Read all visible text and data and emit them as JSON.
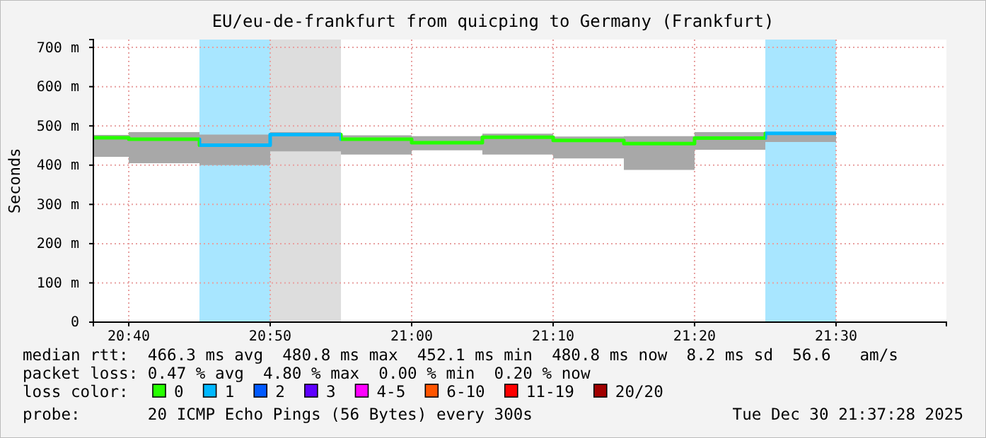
{
  "chart_data": {
    "type": "step",
    "title": "EU/eu-de-frankfurt from quicping to Germany (Frankfurt)",
    "ylabel": "Seconds",
    "x": [
      20.625,
      20.6667,
      20.75,
      20.8333,
      20.9167,
      21,
      21.0833,
      21.1667,
      21.25,
      21.3333,
      21.4167,
      21.5
    ],
    "xlim": [
      20.625,
      21.63
    ],
    "xticks": [
      {
        "value": 20.6667,
        "label": "20:40"
      },
      {
        "value": 20.8333,
        "label": "20:50"
      },
      {
        "value": 21,
        "label": "21:00"
      },
      {
        "value": 21.1667,
        "label": "21:10"
      },
      {
        "value": 21.3333,
        "label": "21:20"
      },
      {
        "value": 21.5,
        "label": "21:30"
      }
    ],
    "ylim": [
      0,
      720
    ],
    "yticks": [
      0,
      {
        "value": 100,
        "label": "100 m"
      },
      {
        "value": 200,
        "label": "200 m"
      },
      {
        "value": 300,
        "label": "300 m"
      },
      {
        "value": 400,
        "label": "400 m"
      },
      {
        "value": 500,
        "label": "500 m"
      },
      {
        "value": 600,
        "label": "600 m"
      },
      {
        "value": 700,
        "label": "700 m"
      }
    ],
    "grid": true,
    "legend": "bottom",
    "legend_title": "loss color:",
    "series": [
      {
        "color": "#26ff00",
        "values": [
          470,
          466,
          451,
          478,
          466,
          457,
          471,
          463,
          455,
          469,
          481,
          481
        ],
        "lower": [
          421,
          405,
          400,
          435,
          427,
          438,
          427,
          417,
          388,
          439,
          459,
          459
        ],
        "upper": [
          477,
          484,
          478,
          484,
          476,
          474,
          480,
          473,
          474,
          484,
          484,
          484
        ],
        "colors": [
          "#26ff00",
          "#26ff00",
          "#00b8ff",
          "#00b8ff",
          "#26ff00",
          "#26ff00",
          "#26ff00",
          "#26ff00",
          "#26ff00",
          "#26ff00",
          "#00b8ff",
          "#00b8ff"
        ]
      },
      {
        "name": "0",
        "color": "#26ff00",
        "values": [
          null,
          null,
          null,
          null,
          null,
          null,
          null,
          null,
          null,
          null,
          null,
          null
        ]
      },
      {
        "name": "1",
        "color": "#00b8ff",
        "values": [
          null,
          null,
          null,
          null,
          null,
          null,
          null,
          null,
          null,
          null,
          null,
          null
        ]
      },
      {
        "name": "2",
        "color": "#0059ff",
        "values": [
          null,
          null,
          null,
          null,
          null,
          null,
          null,
          null,
          null,
          null,
          null,
          null
        ]
      },
      {
        "name": "3",
        "color": "#5e00ff",
        "values": [
          null,
          null,
          null,
          null,
          null,
          null,
          null,
          null,
          null,
          null,
          null,
          null
        ]
      },
      {
        "name": "4-5",
        "color": "#ff00ff",
        "values": [
          null,
          null,
          null,
          null,
          null,
          null,
          null,
          null,
          null,
          null,
          null,
          null
        ]
      },
      {
        "name": "6-10",
        "color": "#ff5500",
        "values": [
          null,
          null,
          null,
          null,
          null,
          null,
          null,
          null,
          null,
          null,
          null,
          null
        ]
      },
      {
        "name": "11-19",
        "color": "#ff0000",
        "values": [
          null,
          null,
          null,
          null,
          null,
          null,
          null,
          null,
          null,
          null,
          null,
          null
        ]
      },
      {
        "name": "20/20",
        "color": "#a10000",
        "values": [
          null,
          null,
          null,
          null,
          null,
          null,
          null,
          null,
          null,
          null,
          null,
          null
        ]
      }
    ],
    "bands": [
      {
        "axis": "x",
        "from": 20.75,
        "to": 20.8333,
        "color": "#a8e6ff"
      },
      {
        "axis": "x",
        "from": 20.8333,
        "to": 20.9167,
        "color": "#dddddd"
      },
      {
        "axis": "x",
        "from": 21.4167,
        "to": 21.5,
        "color": "#a8e6ff"
      }
    ],
    "annotations": [
      "median rtt:  466.3 ms avg  480.8 ms max  452.1 ms min  480.8 ms now  8.2 ms sd  56.6   am/s",
      "packet loss: 0.47 % avg  4.80 % max  0.00 % min  0.20 % now",
      "probe:       20 ICMP Echo Pings (56 Bytes) every 300s",
      "Tue Dec 30 21:37:28 2025"
    ]
  }
}
